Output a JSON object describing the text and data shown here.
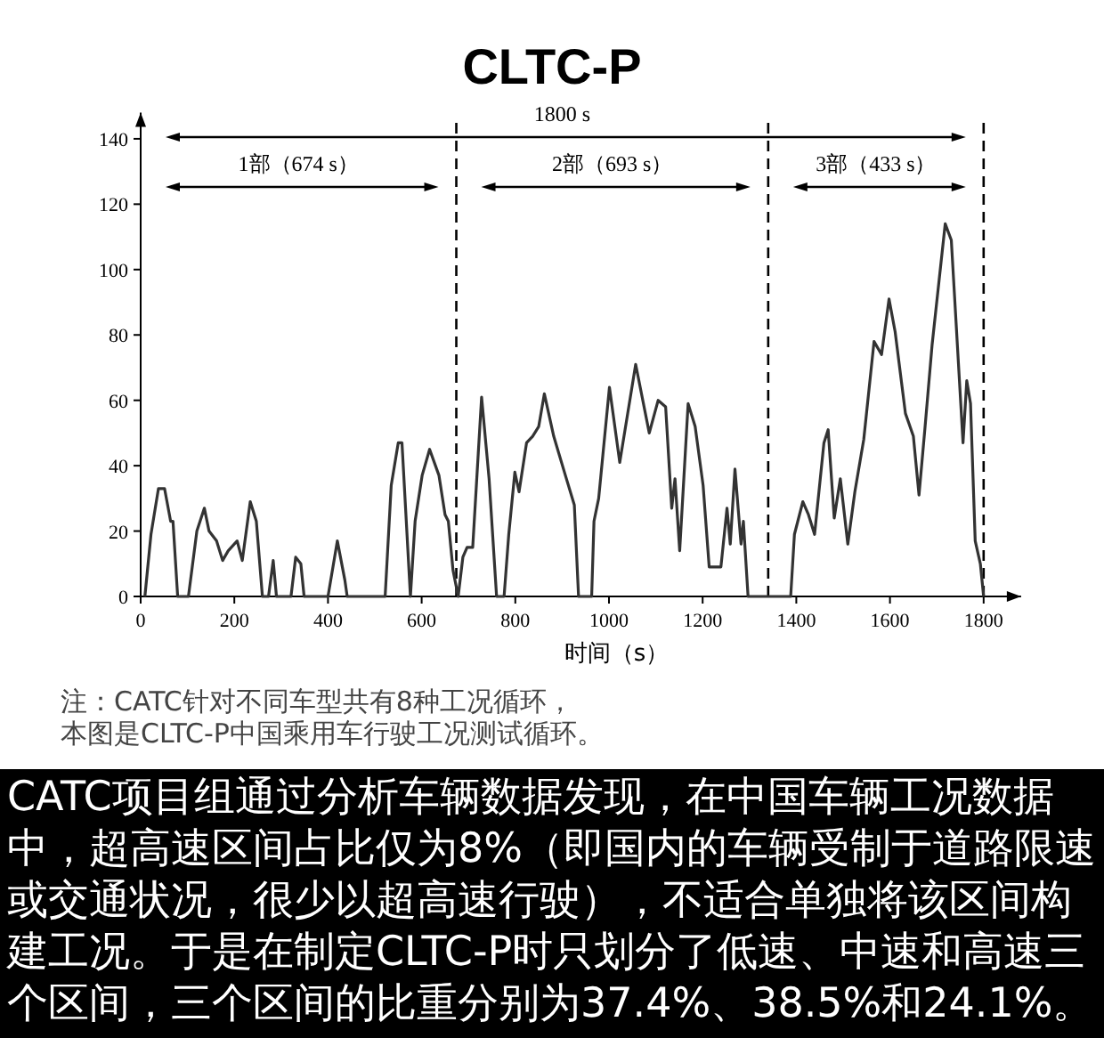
{
  "chart_data": {
    "type": "line",
    "title": "CLTC-P",
    "xlabel": "时间（s）",
    "color": "#333333",
    "marker": "none",
    "line_style": "solid",
    "xlim": [
      0,
      1880
    ],
    "ylim": [
      0,
      148
    ],
    "xticks": [
      0,
      200,
      400,
      600,
      800,
      1000,
      1200,
      1400,
      1600,
      1800
    ],
    "yticks": [
      0,
      20,
      40,
      60,
      80,
      100,
      120,
      140
    ],
    "x": [
      9,
      22,
      38,
      51,
      64,
      69,
      79,
      102,
      120,
      136,
      146,
      162,
      175,
      187,
      206,
      217,
      234,
      247,
      260,
      273,
      283,
      290,
      321,
      331,
      342,
      349,
      400,
      420,
      436,
      441,
      522,
      535,
      550,
      558,
      576,
      586,
      601,
      617,
      637,
      650,
      657,
      667,
      678,
      688,
      697,
      709,
      728,
      744,
      760,
      776,
      786,
      799,
      808,
      824,
      837,
      850,
      862,
      882,
      907,
      926,
      935,
      963,
      968,
      978,
      1001,
      1023,
      1057,
      1086,
      1105,
      1121,
      1134,
      1141,
      1151,
      1169,
      1184,
      1201,
      1214,
      1239,
      1252,
      1259,
      1269,
      1282,
      1287,
      1297,
      1388,
      1396,
      1414,
      1426,
      1439,
      1459,
      1468,
      1481,
      1494,
      1510,
      1525,
      1544,
      1566,
      1582,
      1598,
      1611,
      1633,
      1650,
      1662,
      1675,
      1690,
      1718,
      1731,
      1756,
      1764,
      1772,
      1782,
      1793,
      1800
    ],
    "values": [
      0,
      19,
      33,
      33,
      23,
      23,
      0,
      0,
      20,
      27,
      20,
      17,
      11,
      14,
      17,
      11,
      29,
      23,
      0,
      0,
      11,
      0,
      0,
      12,
      10,
      0,
      0,
      17,
      5,
      0,
      0,
      34,
      47,
      47,
      0,
      23,
      37,
      45,
      37,
      25,
      23,
      8,
      0,
      12,
      15,
      15,
      61,
      36,
      0,
      0,
      19,
      38,
      32,
      47,
      49,
      52,
      62,
      49,
      37,
      28,
      0,
      0,
      23,
      30,
      64,
      41,
      71,
      50,
      60,
      58,
      27,
      36,
      14,
      59,
      52,
      34,
      9,
      9,
      27,
      16,
      39,
      16,
      23,
      0,
      0,
      19,
      29,
      25,
      19,
      47,
      51,
      24,
      36,
      16,
      32,
      48,
      78,
      74,
      91,
      81,
      56,
      49,
      31,
      52,
      77,
      114,
      109,
      47,
      66,
      59,
      17,
      10,
      0
    ],
    "ref_lines": [
      {
        "axis": "x",
        "value": 674,
        "line_style": "dashed"
      },
      {
        "axis": "x",
        "value": 1340,
        "line_style": "dashed"
      },
      {
        "axis": "x",
        "value": 1800,
        "line_style": "dashed"
      }
    ],
    "annotations": [
      "1800 s",
      "1部（674 s）",
      "2部（693 s）",
      "3部（433 s）",
      "注：CATC针对不同车型共有8种工况循环，",
      "本图是CLTC-P中国乘用车行驶工况测试循环。",
      "CATC项目组通过分析车辆数据发现，在中国车辆工况数据中，超高速区间占比仅为8%（即国内的车辆受制于道路限速或交通状况，很少以超高速行驶），不适合单独将该区间构建工况。于是在制定CLTC-P时只划分了低速、中速和高速三个区间，三个区间的比重分别为37.4%、38.5%和24.1%。"
    ]
  }
}
